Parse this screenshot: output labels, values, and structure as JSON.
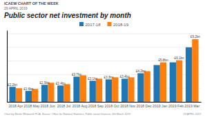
{
  "chart_data": {
    "type": "bar",
    "title": "Public sector net investment by month",
    "annotations": [
      "ICAEW CHART OF THE WEEK",
      "29 APRIL 2019",
      "Chart by Martin Whitworth FCA.   Source: Office for National Statistics, Public sector finances, 6th March 2019",
      "29 APRIL 2019"
    ],
    "categories": [
      "2018 Apr",
      "2018 May",
      "2018 Jun",
      "2018 Jul",
      "2018 Aug",
      "2018 Sep",
      "2018 Oct",
      "2018 Nov",
      "2018 Dec",
      "2019 Jan",
      "2019 Feb",
      "2019 Mar"
    ],
    "series": [
      {
        "name": "2017-18",
        "values": [
          2.2,
          1.6,
          2.5,
          2.4,
          3.7,
          3.1,
          3.3,
          3.4,
          4.2,
          5.4,
          5.8,
          8.0
        ],
        "value_labels": [
          "£2.2bn",
          "£1.6bn",
          "£2.5bn",
          "£2.4bn",
          "£3.7bn",
          "£3.1bn",
          "£3.3bn",
          "£3.4bn",
          "£4.2bn",
          null,
          null,
          null
        ]
      },
      {
        "name": "2018-19",
        "values": [
          2.0,
          1.9,
          2.8,
          2.6,
          3.9,
          3.4,
          3.6,
          3.6,
          4.5,
          5.8,
          6.1,
          9.2
        ],
        "value_labels": [
          null,
          null,
          null,
          null,
          null,
          null,
          null,
          null,
          null,
          "£5.8bn",
          "£6.1bn",
          "£9.2bn"
        ]
      }
    ],
    "ylim": [
      0,
      10.5
    ],
    "yticks": [
      0,
      2,
      4,
      6,
      8,
      10
    ],
    "grid": true,
    "legend": "top",
    "data_labels": true,
    "tick_labels": "x"
  }
}
